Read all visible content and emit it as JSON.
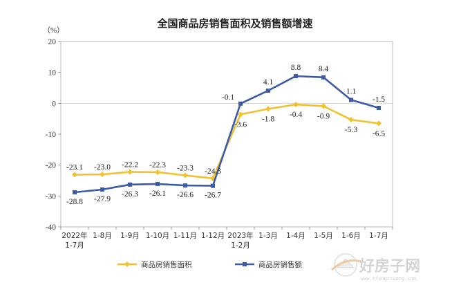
{
  "chart_data": {
    "type": "line",
    "title": "全国商品房销售面积及销售额增速",
    "ylabel": "（%）",
    "xlabel": "",
    "ylim": [
      -40,
      20
    ],
    "yticks": [
      "20",
      "10",
      "0",
      "-10",
      "-20",
      "-30",
      "-40"
    ],
    "categories": [
      [
        "2022年",
        "1-7月"
      ],
      [
        "1-8月"
      ],
      [
        "1-9月"
      ],
      [
        "1-10月"
      ],
      [
        "1-11月"
      ],
      [
        "1-12月"
      ],
      [
        "2023年",
        "1-2月"
      ],
      [
        "1-3月"
      ],
      [
        "1-4月"
      ],
      [
        "1-5月"
      ],
      [
        "1-6月"
      ],
      [
        "1-7月"
      ]
    ],
    "series": [
      {
        "name": "商品房销售面积",
        "color": "#f2c12e",
        "marker": "diamond",
        "values": [
          -23.1,
          -23.0,
          -22.2,
          -22.3,
          -23.3,
          -24.3,
          -3.6,
          -1.8,
          -0.4,
          -0.9,
          -5.3,
          -6.5
        ],
        "labels": [
          "-23.1",
          "-23.0",
          "-22.2",
          "-22.3",
          "-23.3",
          "-24.3",
          "-3.6",
          "-1.8",
          "-0.4",
          "-0.9",
          "-5.3",
          "-6.5"
        ]
      },
      {
        "name": "商品房销售额",
        "color": "#3b5ba8",
        "marker": "square",
        "values": [
          -28.8,
          -27.9,
          -26.3,
          -26.1,
          -26.6,
          -26.7,
          -0.1,
          4.1,
          8.8,
          8.4,
          1.1,
          -1.5
        ],
        "labels": [
          "-28.8",
          "-27.9",
          "-26.3",
          "-26.1",
          "-26.6",
          "-26.7",
          "-0.1",
          "4.1",
          "8.8",
          "8.4",
          "1.1",
          "-1.5"
        ]
      }
    ],
    "legend_position": "bottom",
    "grid": false
  },
  "watermark": {
    "text": "好房子网",
    "url": "www.hfangziwang.com"
  }
}
